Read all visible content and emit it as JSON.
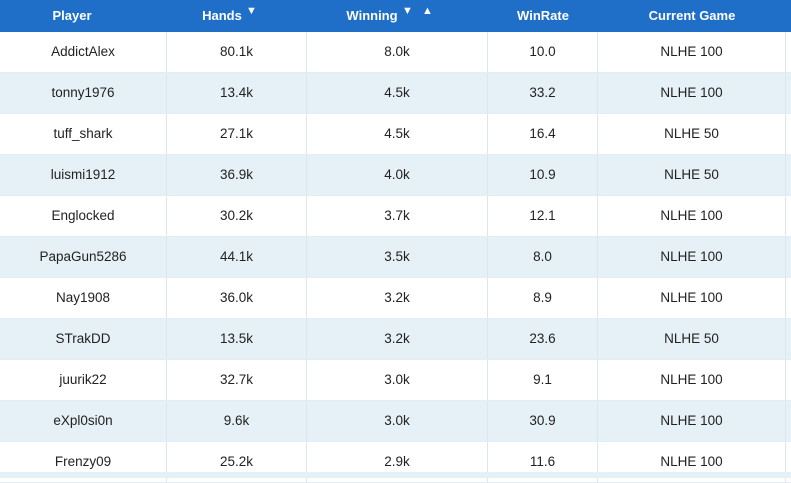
{
  "header": {
    "player": "Player",
    "hands": "Hands",
    "winning": "Winning",
    "winrate": "WinRate",
    "current_game": "Current Game",
    "sort_desc_icon": "▼",
    "sort_asc_icon": "▲"
  },
  "rows": [
    {
      "player": "AddictAlex",
      "hands": "80.1k",
      "winning": "8.0k",
      "winrate": "10.0",
      "game": "NLHE 100"
    },
    {
      "player": "tonny1976",
      "hands": "13.4k",
      "winning": "4.5k",
      "winrate": "33.2",
      "game": "NLHE 100"
    },
    {
      "player": "tuff_shark",
      "hands": "27.1k",
      "winning": "4.5k",
      "winrate": "16.4",
      "game": "NLHE 50"
    },
    {
      "player": "luismi1912",
      "hands": "36.9k",
      "winning": "4.0k",
      "winrate": "10.9",
      "game": "NLHE 50"
    },
    {
      "player": "Englocked",
      "hands": "30.2k",
      "winning": "3.7k",
      "winrate": "12.1",
      "game": "NLHE 100"
    },
    {
      "player": "PapaGun5286",
      "hands": "44.1k",
      "winning": "3.5k",
      "winrate": "8.0",
      "game": "NLHE 100"
    },
    {
      "player": "Nay1908",
      "hands": "36.0k",
      "winning": "3.2k",
      "winrate": "8.9",
      "game": "NLHE 100"
    },
    {
      "player": "STrakDD",
      "hands": "13.5k",
      "winning": "3.2k",
      "winrate": "23.6",
      "game": "NLHE 50"
    },
    {
      "player": "juurik22",
      "hands": "32.7k",
      "winning": "3.0k",
      "winrate": "9.1",
      "game": "NLHE 100"
    },
    {
      "player": "eXpl0si0n",
      "hands": "9.6k",
      "winning": "3.0k",
      "winrate": "30.9",
      "game": "NLHE 100"
    },
    {
      "player": "Frenzy09",
      "hands": "25.2k",
      "winning": "2.9k",
      "winrate": "11.6",
      "game": "NLHE 100"
    }
  ]
}
